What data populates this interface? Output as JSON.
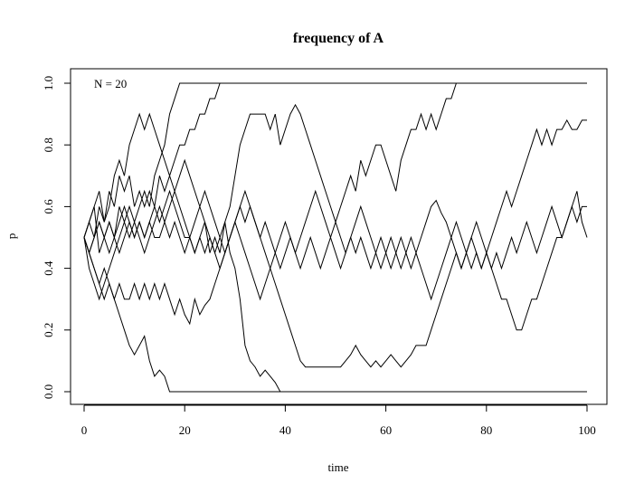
{
  "chart_data": {
    "type": "line",
    "title": "frequency of A",
    "xlabel": "time",
    "ylabel": "p",
    "annotation": "N = 20",
    "xlim": [
      0,
      100
    ],
    "ylim": [
      0,
      1
    ],
    "x_ticks": [
      "0",
      "20",
      "40",
      "60",
      "80",
      "100"
    ],
    "y_ticks": [
      "0.0",
      "0.2",
      "0.4",
      "0.6",
      "0.8",
      "1.0"
    ],
    "grid": false,
    "line_color": "#000000",
    "series": [
      {
        "values": [
          0.5,
          0.55,
          0.6,
          0.45,
          0.5,
          0.55,
          0.5,
          0.6,
          0.55,
          0.6,
          0.55,
          0.6,
          0.65,
          0.6,
          0.7,
          0.75,
          0.8,
          0.9,
          0.95,
          1.0,
          1.0,
          1.0,
          1.0,
          1.0,
          1.0,
          1.0,
          1.0,
          1.0,
          1.0,
          1.0,
          1.0,
          1.0,
          1.0,
          1.0,
          1.0,
          1.0,
          1.0,
          1.0,
          1.0,
          1.0,
          1.0,
          1.0,
          1.0,
          1.0,
          1.0,
          1.0,
          1.0,
          1.0,
          1.0,
          1.0,
          1.0,
          1.0,
          1.0,
          1.0,
          1.0,
          1.0,
          1.0,
          1.0,
          1.0,
          1.0,
          1.0,
          1.0,
          1.0,
          1.0,
          1.0,
          1.0,
          1.0,
          1.0,
          1.0,
          1.0,
          1.0,
          1.0,
          1.0,
          1.0,
          1.0,
          1.0,
          1.0,
          1.0,
          1.0,
          1.0,
          1.0,
          1.0,
          1.0,
          1.0,
          1.0,
          1.0,
          1.0,
          1.0,
          1.0,
          1.0,
          1.0,
          1.0,
          1.0,
          1.0,
          1.0,
          1.0,
          1.0,
          1.0,
          1.0,
          1.0
        ]
      },
      {
        "values": [
          0.5,
          0.55,
          0.5,
          0.6,
          0.55,
          0.65,
          0.6,
          0.7,
          0.65,
          0.7,
          0.6,
          0.65,
          0.6,
          0.65,
          0.6,
          0.7,
          0.65,
          0.7,
          0.75,
          0.8,
          0.8,
          0.85,
          0.85,
          0.9,
          0.9,
          0.95,
          0.95,
          1.0,
          1.0,
          1.0,
          1.0,
          1.0,
          1.0,
          1.0,
          1.0,
          1.0,
          1.0,
          1.0,
          1.0,
          1.0,
          1.0,
          1.0,
          1.0,
          1.0,
          1.0,
          1.0,
          1.0,
          1.0,
          1.0,
          1.0,
          1.0,
          1.0,
          1.0,
          1.0,
          1.0,
          1.0,
          1.0,
          1.0,
          1.0,
          1.0,
          1.0,
          1.0,
          1.0,
          1.0,
          1.0,
          1.0,
          1.0,
          1.0,
          1.0,
          1.0,
          1.0,
          1.0,
          1.0,
          1.0,
          1.0,
          1.0,
          1.0,
          1.0,
          1.0,
          1.0,
          1.0,
          1.0,
          1.0,
          1.0,
          1.0,
          1.0,
          1.0,
          1.0,
          1.0,
          1.0,
          1.0,
          1.0,
          1.0,
          1.0,
          1.0,
          1.0,
          1.0,
          1.0,
          1.0,
          1.0
        ]
      },
      {
        "values": [
          0.5,
          0.55,
          0.6,
          0.65,
          0.55,
          0.6,
          0.7,
          0.75,
          0.7,
          0.8,
          0.85,
          0.9,
          0.85,
          0.9,
          0.85,
          0.8,
          0.75,
          0.7,
          0.65,
          0.6,
          0.55,
          0.5,
          0.45,
          0.5,
          0.55,
          0.45,
          0.5,
          0.45,
          0.55,
          0.6,
          0.7,
          0.8,
          0.85,
          0.9,
          0.9,
          0.9,
          0.9,
          0.85,
          0.9,
          0.8,
          0.85,
          0.9,
          0.93,
          0.9,
          0.85,
          0.8,
          0.75,
          0.7,
          0.65,
          0.6,
          0.55,
          0.6,
          0.65,
          0.7,
          0.65,
          0.75,
          0.7,
          0.75,
          0.8,
          0.8,
          0.75,
          0.7,
          0.65,
          0.75,
          0.8,
          0.85,
          0.85,
          0.9,
          0.85,
          0.9,
          0.85,
          0.9,
          0.95,
          0.95,
          1.0,
          1.0,
          1.0,
          1.0,
          1.0,
          1.0,
          1.0,
          1.0,
          1.0,
          1.0,
          1.0,
          1.0,
          1.0,
          1.0,
          1.0,
          1.0,
          1.0,
          1.0,
          1.0,
          1.0,
          1.0,
          1.0,
          1.0,
          1.0,
          1.0,
          1.0,
          1.0
        ]
      },
      {
        "values": [
          0.5,
          0.45,
          0.4,
          0.35,
          0.3,
          0.35,
          0.3,
          0.25,
          0.2,
          0.15,
          0.12,
          0.15,
          0.18,
          0.1,
          0.05,
          0.07,
          0.05,
          0.0,
          0.0,
          0.0,
          0.0,
          0.0,
          0.0,
          0.0,
          0.0,
          0.0,
          0.0,
          0.0,
          0.0,
          0.0,
          0.0,
          0.0,
          0.0,
          0.0,
          0.0,
          0.0,
          0.0,
          0.0,
          0.0,
          0.0,
          0.0,
          0.0,
          0.0,
          0.0,
          0.0,
          0.0,
          0.0,
          0.0,
          0.0,
          0.0,
          0.0,
          0.0,
          0.0,
          0.0,
          0.0,
          0.0,
          0.0,
          0.0,
          0.0,
          0.0,
          0.0,
          0.0,
          0.0,
          0.0,
          0.0,
          0.0,
          0.0,
          0.0,
          0.0,
          0.0,
          0.0,
          0.0,
          0.0,
          0.0,
          0.0,
          0.0,
          0.0,
          0.0,
          0.0,
          0.0,
          0.0,
          0.0,
          0.0,
          0.0,
          0.0,
          0.0,
          0.0,
          0.0,
          0.0,
          0.0,
          0.0,
          0.0,
          0.0,
          0.0,
          0.0,
          0.0,
          0.0,
          0.0,
          0.0,
          0.0,
          0.0
        ]
      },
      {
        "values": [
          0.5,
          0.45,
          0.5,
          0.55,
          0.5,
          0.45,
          0.5,
          0.55,
          0.6,
          0.55,
          0.5,
          0.55,
          0.5,
          0.55,
          0.6,
          0.55,
          0.6,
          0.65,
          0.6,
          0.55,
          0.5,
          0.5,
          0.45,
          0.5,
          0.45,
          0.5,
          0.45,
          0.5,
          0.55,
          0.45,
          0.4,
          0.3,
          0.15,
          0.1,
          0.08,
          0.05,
          0.07,
          0.05,
          0.03,
          0.0,
          0.0,
          0.0,
          0.0,
          0.0,
          0.0,
          0.0,
          0.0,
          0.0,
          0.0,
          0.0,
          0.0,
          0.0,
          0.0,
          0.0,
          0.0,
          0.0,
          0.0,
          0.0,
          0.0,
          0.0,
          0.0,
          0.0,
          0.0,
          0.0,
          0.0,
          0.0,
          0.0,
          0.0,
          0.0,
          0.0,
          0.0,
          0.0,
          0.0,
          0.0,
          0.0,
          0.0,
          0.0,
          0.0,
          0.0,
          0.0,
          0.0,
          0.0,
          0.0,
          0.0,
          0.0,
          0.0,
          0.0,
          0.0,
          0.0,
          0.0,
          0.0,
          0.0,
          0.0,
          0.0,
          0.0,
          0.0,
          0.0,
          0.0,
          0.0,
          0.0,
          0.0
        ]
      },
      {
        "values": [
          0.5,
          0.45,
          0.4,
          0.35,
          0.4,
          0.35,
          0.3,
          0.35,
          0.3,
          0.3,
          0.35,
          0.3,
          0.35,
          0.3,
          0.35,
          0.3,
          0.35,
          0.3,
          0.25,
          0.3,
          0.25,
          0.22,
          0.3,
          0.25,
          0.28,
          0.3,
          0.35,
          0.4,
          0.45,
          0.5,
          0.55,
          0.6,
          0.55,
          0.6,
          0.55,
          0.5,
          0.45,
          0.4,
          0.35,
          0.3,
          0.25,
          0.2,
          0.15,
          0.1,
          0.08,
          0.08,
          0.08,
          0.08,
          0.08,
          0.08,
          0.08,
          0.08,
          0.1,
          0.12,
          0.15,
          0.12,
          0.1,
          0.08,
          0.1,
          0.08,
          0.1,
          0.12,
          0.1,
          0.08,
          0.1,
          0.12,
          0.15,
          0.15,
          0.15,
          0.2,
          0.25,
          0.3,
          0.35,
          0.4,
          0.45,
          0.4,
          0.45,
          0.4,
          0.45,
          0.4,
          0.45,
          0.4,
          0.35,
          0.3,
          0.3,
          0.25,
          0.2,
          0.2,
          0.25,
          0.3,
          0.3,
          0.35,
          0.4,
          0.45,
          0.5,
          0.5,
          0.55,
          0.6,
          0.65,
          0.55,
          0.5
        ]
      },
      {
        "values": [
          0.5,
          0.45,
          0.5,
          0.55,
          0.5,
          0.55,
          0.5,
          0.45,
          0.5,
          0.55,
          0.5,
          0.55,
          0.5,
          0.55,
          0.5,
          0.5,
          0.55,
          0.5,
          0.55,
          0.5,
          0.45,
          0.5,
          0.55,
          0.6,
          0.65,
          0.6,
          0.55,
          0.5,
          0.45,
          0.5,
          0.55,
          0.6,
          0.65,
          0.6,
          0.55,
          0.5,
          0.55,
          0.5,
          0.45,
          0.4,
          0.45,
          0.5,
          0.45,
          0.4,
          0.45,
          0.5,
          0.45,
          0.4,
          0.45,
          0.5,
          0.55,
          0.5,
          0.45,
          0.5,
          0.45,
          0.5,
          0.45,
          0.4,
          0.45,
          0.4,
          0.45,
          0.5,
          0.45,
          0.4,
          0.45,
          0.4,
          0.45,
          0.4,
          0.35,
          0.3,
          0.35,
          0.4,
          0.45,
          0.5,
          0.45,
          0.4,
          0.45,
          0.5,
          0.55,
          0.5,
          0.45,
          0.4,
          0.45,
          0.4,
          0.45,
          0.5,
          0.45,
          0.5,
          0.55,
          0.5,
          0.45,
          0.5,
          0.55,
          0.6,
          0.55,
          0.5,
          0.55,
          0.6,
          0.55,
          0.6,
          0.6
        ]
      },
      {
        "values": [
          0.5,
          0.4,
          0.35,
          0.3,
          0.35,
          0.4,
          0.45,
          0.5,
          0.55,
          0.5,
          0.55,
          0.5,
          0.45,
          0.5,
          0.55,
          0.6,
          0.55,
          0.6,
          0.65,
          0.7,
          0.75,
          0.7,
          0.65,
          0.6,
          0.55,
          0.5,
          0.45,
          0.4,
          0.45,
          0.5,
          0.55,
          0.5,
          0.45,
          0.4,
          0.35,
          0.3,
          0.35,
          0.4,
          0.45,
          0.5,
          0.55,
          0.5,
          0.45,
          0.5,
          0.55,
          0.6,
          0.65,
          0.6,
          0.55,
          0.5,
          0.45,
          0.4,
          0.45,
          0.5,
          0.55,
          0.6,
          0.55,
          0.5,
          0.45,
          0.5,
          0.45,
          0.4,
          0.45,
          0.5,
          0.45,
          0.5,
          0.45,
          0.5,
          0.55,
          0.6,
          0.62,
          0.58,
          0.55,
          0.5,
          0.55,
          0.5,
          0.45,
          0.5,
          0.45,
          0.4,
          0.45,
          0.5,
          0.55,
          0.6,
          0.65,
          0.6,
          0.65,
          0.7,
          0.75,
          0.8,
          0.85,
          0.8,
          0.85,
          0.8,
          0.85,
          0.85,
          0.88,
          0.85,
          0.85,
          0.88,
          0.88
        ]
      }
    ]
  }
}
